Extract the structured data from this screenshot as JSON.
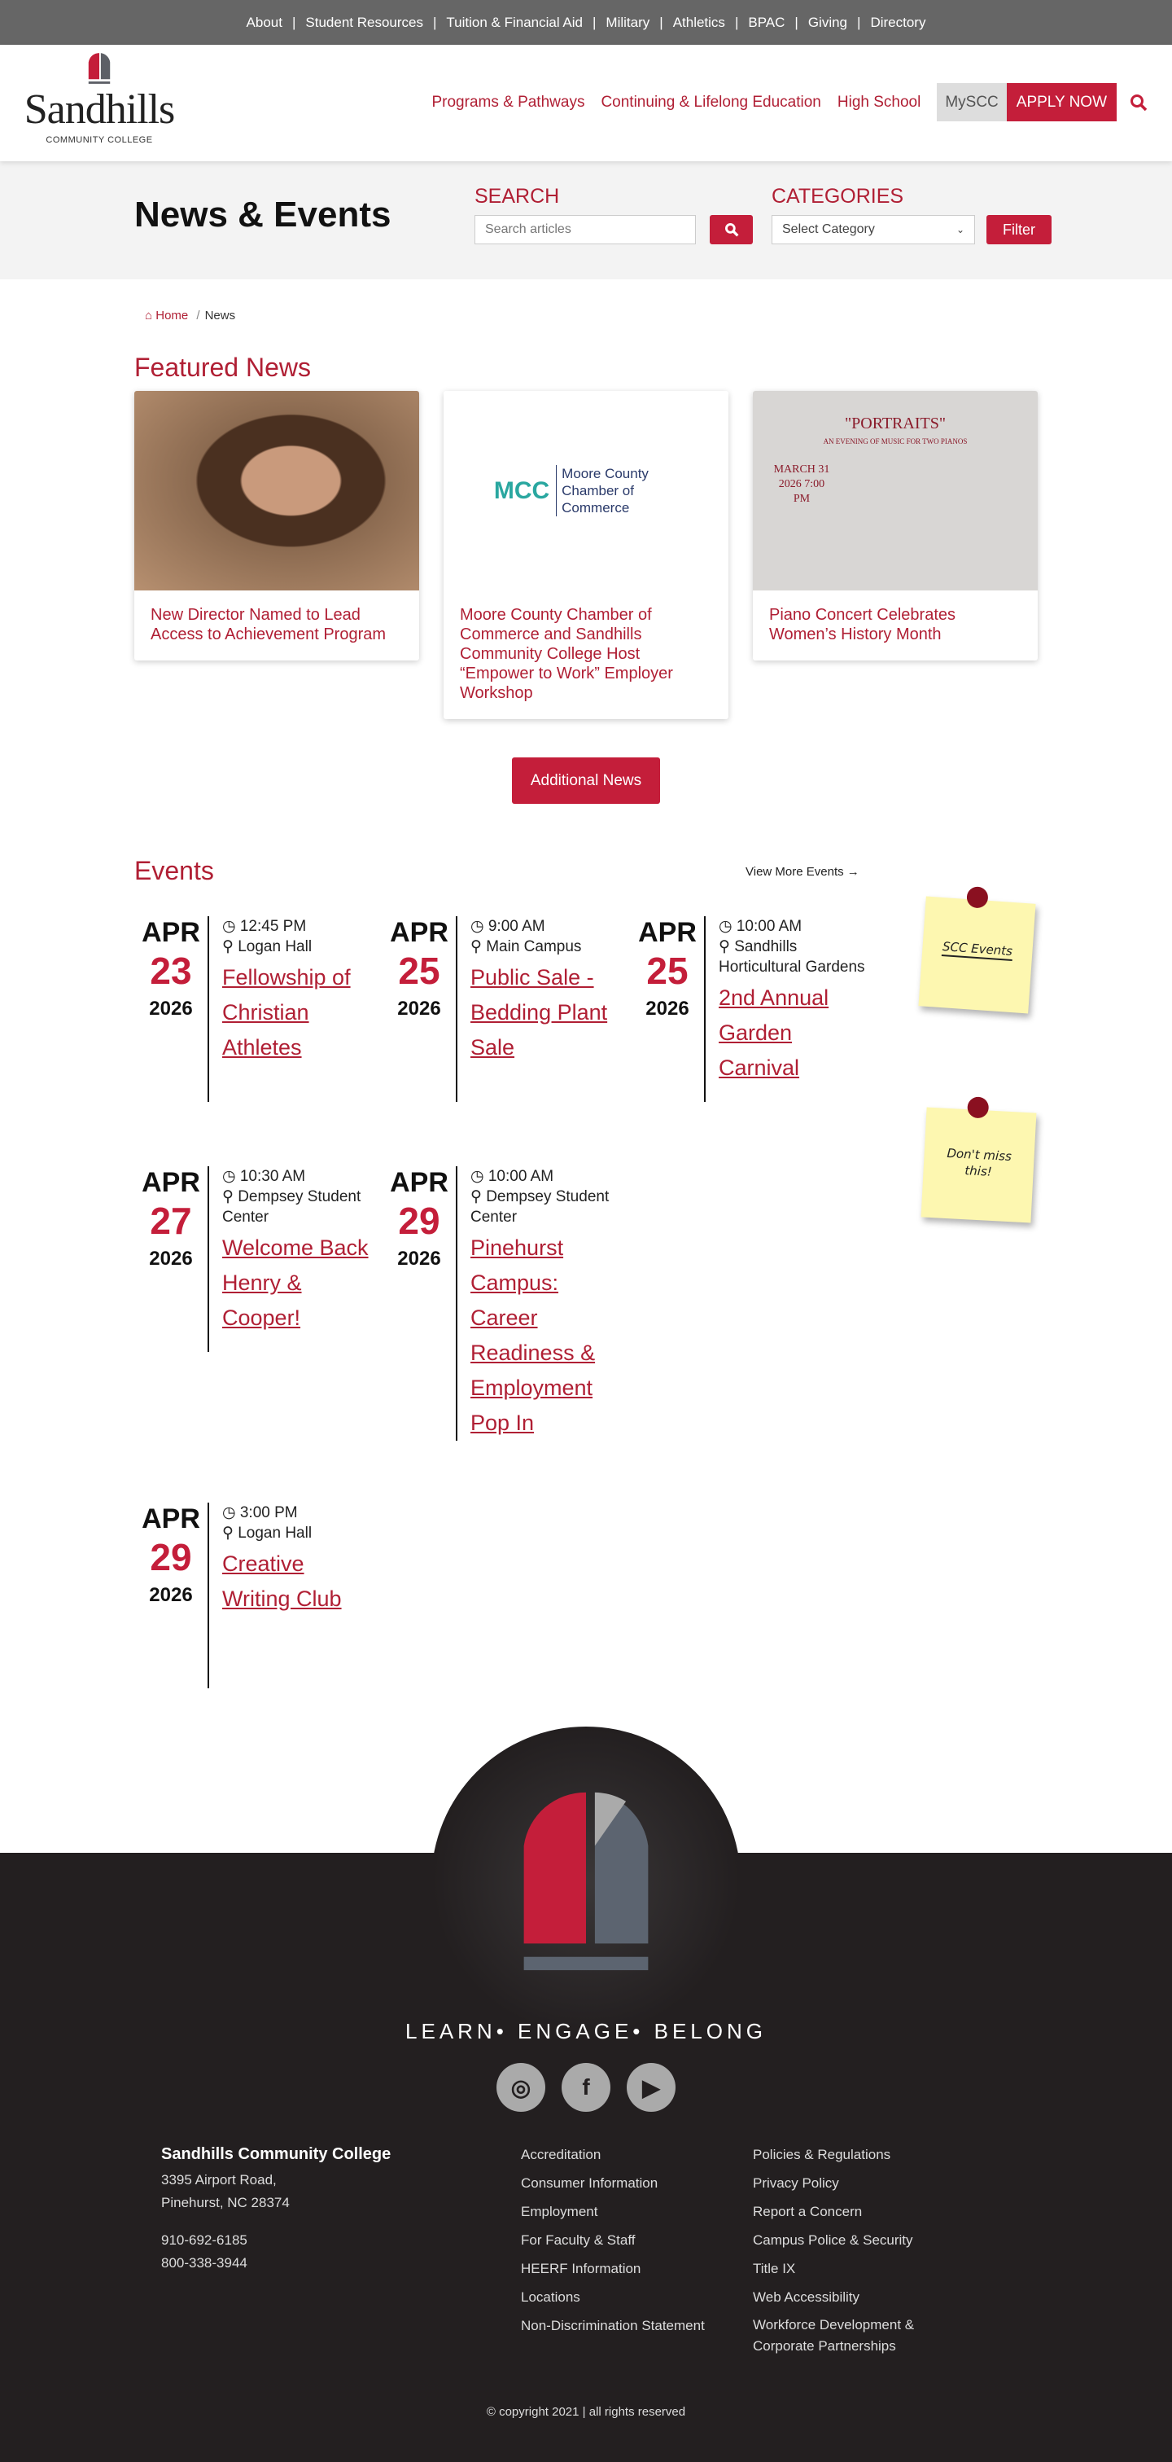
{
  "topnav": [
    "About",
    "Student Resources",
    "Tuition & Financial Aid",
    "Military",
    "Athletics",
    "BPAC",
    "Giving",
    "Directory"
  ],
  "logo": {
    "word": "Sandhills",
    "sub": "COMMUNITY COLLEGE"
  },
  "mainnav": {
    "items": [
      "Programs & Pathways",
      "Continuing & Lifelong Education",
      "High School"
    ],
    "myscc": "MySCC",
    "apply": "APPLY NOW"
  },
  "hero": {
    "title": "News & Events",
    "search_label": "SEARCH",
    "search_placeholder": "Search articles",
    "categories_label": "CATEGORIES",
    "category_selected": "Select Category",
    "filter": "Filter"
  },
  "breadcrumb": {
    "home": "Home",
    "current": "News"
  },
  "featured": {
    "heading": "Featured News",
    "cards": [
      {
        "title": "New Director Named to Lead Access to Achievement Program"
      },
      {
        "title": "Moore County Chamber of Commerce and Sandhills Community College Host “Empower to Work” Employer Workshop",
        "logo_text": "Moore County Chamber of Commerce"
      },
      {
        "title": "Piano Concert Celebrates Women’s History Month",
        "poster": {
          "heading": "\"PORTRAITS\"",
          "sub": "AN EVENING OF MUSIC FOR TWO PIANOS",
          "date": "MARCH 31 2026 7:00 PM"
        }
      }
    ],
    "more": "Additional News"
  },
  "events": {
    "heading": "Events",
    "view_more": "View More Events →",
    "items": [
      {
        "month": "APR",
        "day": "23",
        "year": "2026",
        "time": "12:45 PM",
        "location": "Logan Hall",
        "title": "Fellowship of Christian Athletes"
      },
      {
        "month": "APR",
        "day": "25",
        "year": "2026",
        "time": "9:00 AM",
        "location": "Main Campus",
        "title": "Public Sale - Bedding Plant Sale"
      },
      {
        "month": "APR",
        "day": "25",
        "year": "2026",
        "time": "10:00 AM",
        "location": "Sandhills Horticultural Gardens",
        "title": "2nd Annual Garden Carnival"
      },
      {
        "month": "APR",
        "day": "27",
        "year": "2026",
        "time": "10:30 AM",
        "location": "Dempsey Student Center",
        "title": "Welcome Back Henry & Cooper!"
      },
      {
        "month": "APR",
        "day": "29",
        "year": "2026",
        "time": "10:00 AM",
        "location": "Dempsey Student Center",
        "title": "Pinehurst Campus: Career Readiness & Employment Pop In"
      },
      {
        "month": "APR",
        "day": "29",
        "year": "2026",
        "time": "3:00 PM",
        "location": "Logan Hall",
        "title": "Creative Writing Club"
      }
    ],
    "notes": [
      "SCC Events",
      "Don't miss this!"
    ]
  },
  "footer": {
    "tagline": "LEARN• ENGAGE• BELONG",
    "social": [
      "instagram-icon",
      "facebook-icon",
      "youtube-icon"
    ],
    "college": "Sandhills Community College",
    "address1": "3395 Airport Road,",
    "address2": "Pinehurst, NC 28374",
    "phone1": "910-692-6185",
    "phone2": "800-338-3944",
    "col1": [
      "Accreditation",
      "Consumer Information",
      "Employment",
      "For Faculty & Staff",
      "HEERF Information",
      "Locations",
      "Non-Discrimination Statement"
    ],
    "col2": [
      "Policies & Regulations",
      "Privacy Policy",
      "Report a Concern",
      "Campus Police & Security",
      "Title IX",
      "Web Accessibility",
      "Workforce Development & Corporate Partnerships"
    ],
    "copyright": "© copyright 2021  |  all rights reserved"
  },
  "colors": {
    "brand_red": "#c41e3a",
    "footer_bg": "#231f20",
    "topbar": "#666666"
  }
}
